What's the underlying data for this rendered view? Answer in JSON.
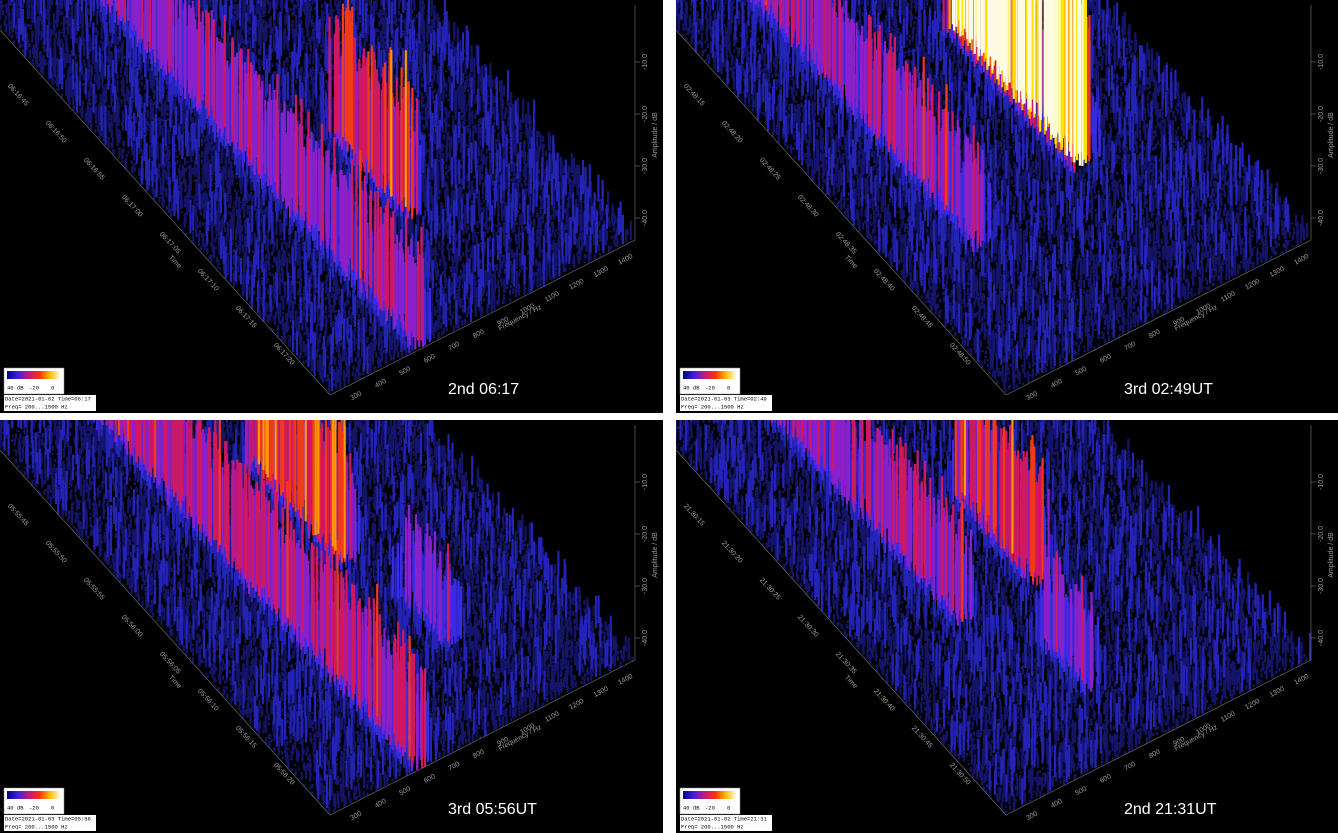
{
  "panels": [
    {
      "caption": "2nd 06:17",
      "time_ticks": [
        "06:16:45",
        "06:16:50",
        "06:16:55",
        "06:17:00",
        "06:17:05",
        "06:17:10",
        "06:17:15",
        "06:17:20"
      ],
      "time_label": "Time",
      "freq_ticks": [
        "300",
        "400",
        "500",
        "600",
        "700",
        "800",
        "900",
        "1000",
        "1100",
        "1200",
        "1300",
        "1400"
      ],
      "freq_label": "Frequency / Hz",
      "amp_ticks": [
        "-10.0",
        "-20.0",
        "-30.0",
        "-40.0"
      ],
      "amp_label": "Amplitude / dB",
      "legend_ticks": [
        "40 dB",
        "-20",
        "0"
      ],
      "info": [
        "Date=2021-01-02 Time=06:17",
        "Freq= 200...1500 Hz"
      ]
    },
    {
      "caption": "3rd 02:49UT",
      "time_ticks": [
        "02:48:15",
        "02:48:20",
        "02:48:25",
        "02:48:30",
        "02:48:35",
        "02:48:40",
        "02:48:45",
        "02:48:50"
      ],
      "time_label": "Time",
      "freq_ticks": [
        "300",
        "400",
        "500",
        "600",
        "700",
        "800",
        "900",
        "1000",
        "1100",
        "1200",
        "1300",
        "1400"
      ],
      "freq_label": "Frequency / Hz",
      "amp_ticks": [
        "-10.0",
        "-20.0",
        "-30.0",
        "-40.0"
      ],
      "amp_label": "Amplitude / dB",
      "legend_ticks": [
        "40 dB",
        "-20",
        "0"
      ],
      "info": [
        "Date=2021-01-03 Time=02:49",
        "Freq= 200...1500 Hz"
      ]
    },
    {
      "caption": "3rd 05:56UT",
      "time_ticks": [
        "05:55:45",
        "05:55:50",
        "05:55:55",
        "05:56:00",
        "05:56:05",
        "05:56:10",
        "05:56:15",
        "05:56:20"
      ],
      "time_label": "Time",
      "freq_ticks": [
        "300",
        "400",
        "500",
        "600",
        "700",
        "800",
        "900",
        "1000",
        "1100",
        "1200",
        "1300",
        "1400"
      ],
      "freq_label": "Frequency / Hz",
      "amp_ticks": [
        "-10.0",
        "-20.0",
        "-30.0",
        "-40.0"
      ],
      "amp_label": "Amplitude / dB",
      "legend_ticks": [
        "40 dB",
        "-20",
        "0"
      ],
      "info": [
        "Date=2021-01-03 Time=05:56",
        "Freq= 200...1500 Hz"
      ]
    },
    {
      "caption": "2nd 21:31UT",
      "time_ticks": [
        "21:30:15",
        "21:30:20",
        "21:30:25",
        "21:30:30",
        "21:30:35",
        "21:30:40",
        "21:30:45",
        "21:30:50"
      ],
      "time_label": "Time",
      "freq_ticks": [
        "300",
        "400",
        "500",
        "600",
        "700",
        "800",
        "900",
        "1000",
        "1100",
        "1200",
        "1300",
        "1400"
      ],
      "freq_label": "Frequency / Hz",
      "amp_ticks": [
        "-10.0",
        "-20.0",
        "-30.0",
        "-40.0"
      ],
      "amp_label": "Amplitude / dB",
      "legend_ticks": [
        "40 dB",
        "-20",
        "0"
      ],
      "info": [
        "Date=2021-01-02 Time=21:31",
        "Freq= 200...1500 Hz"
      ]
    }
  ]
}
